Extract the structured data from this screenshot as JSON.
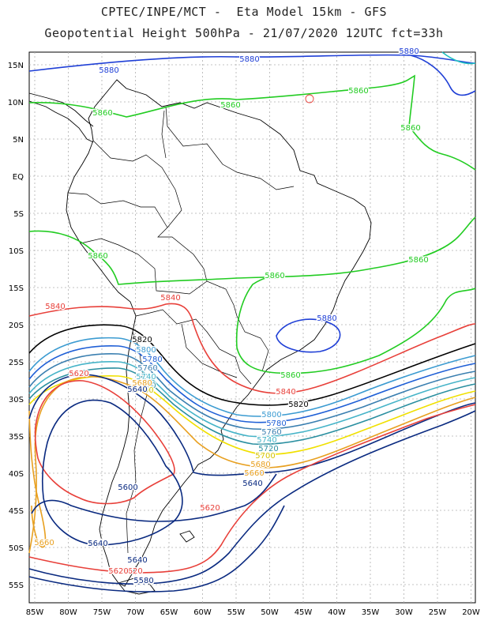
{
  "title_line1": "CPTEC/INPE/MCT -  Eta Model 15km - GFS",
  "title_line2": "Geopotential Height 500hPa - 21/07/2020 12UTC fct=33h",
  "axes": {
    "lon_ticks": [
      "85W",
      "80W",
      "75W",
      "70W",
      "65W",
      "60W",
      "55W",
      "50W",
      "45W",
      "40W",
      "35W",
      "30W",
      "25W",
      "20W"
    ],
    "lat_ticks": [
      "15N",
      "10N",
      "5N",
      "EQ",
      "5S",
      "10S",
      "15S",
      "20S",
      "25S",
      "30S",
      "35S",
      "40S",
      "45S",
      "50S",
      "55S"
    ]
  },
  "colors": {
    "5880": "#1f3fd6",
    "5860": "#22cc22",
    "5840": "#e8403a",
    "5820": "#000000",
    "5800": "#3b9bd1",
    "5780": "#1f5fd6",
    "5760": "#3a7fb0",
    "5740": "#46b4c8",
    "5720": "#2a8fa0",
    "5700": "#f0e000",
    "5680": "#e8a020",
    "5660": "#e8a020",
    "5640": "#0a2a80",
    "5620": "#e8403a",
    "5600": "#0a2a80",
    "5580": "#0a2a80",
    "5900": "#20c0c0"
  },
  "contour_labels": [
    {
      "text": "5880",
      "color": "#1f3fd6"
    },
    {
      "text": "5880",
      "color": "#1f3fd6"
    },
    {
      "text": "5880",
      "color": "#1f3fd6"
    },
    {
      "text": "5860",
      "color": "#22cc22"
    },
    {
      "text": "5860",
      "color": "#22cc22"
    },
    {
      "text": "5860",
      "color": "#22cc22"
    },
    {
      "text": "5860",
      "color": "#22cc22"
    },
    {
      "text": "5860",
      "color": "#22cc22"
    },
    {
      "text": "5860",
      "color": "#22cc22"
    },
    {
      "text": "5860",
      "color": "#22cc22"
    },
    {
      "text": "5860",
      "color": "#22cc22"
    },
    {
      "text": "5880",
      "color": "#1f3fd6"
    },
    {
      "text": "5840",
      "color": "#e8403a"
    },
    {
      "text": "5840",
      "color": "#e8403a"
    },
    {
      "text": "5840",
      "color": "#e8403a"
    },
    {
      "text": "5820",
      "color": "#000000"
    },
    {
      "text": "5820",
      "color": "#000000"
    },
    {
      "text": "5800",
      "color": "#3b9bd1"
    },
    {
      "text": "5780",
      "color": "#1f5fd6"
    },
    {
      "text": "5760",
      "color": "#3a7fb0"
    },
    {
      "text": "5740",
      "color": "#46b4c8"
    },
    {
      "text": "5720",
      "color": "#2a8fa0"
    },
    {
      "text": "5700",
      "color": "#d4c400"
    },
    {
      "text": "5680",
      "color": "#e8a020"
    },
    {
      "text": "5640",
      "color": "#0a2a80"
    },
    {
      "text": "5620",
      "color": "#e8403a"
    },
    {
      "text": "5620",
      "color": "#e8403a"
    },
    {
      "text": "5620",
      "color": "#e8403a"
    },
    {
      "text": "5800",
      "color": "#3b9bd1"
    },
    {
      "text": "5780",
      "color": "#1f5fd6"
    },
    {
      "text": "5760",
      "color": "#3a7fb0"
    },
    {
      "text": "5740",
      "color": "#46b4c8"
    },
    {
      "text": "5720",
      "color": "#2a8fa0"
    },
    {
      "text": "5700",
      "color": "#d4c400"
    },
    {
      "text": "5680",
      "color": "#e8a020"
    },
    {
      "text": "5660",
      "color": "#e8a020"
    },
    {
      "text": "5640",
      "color": "#0a2a80"
    },
    {
      "text": "5600",
      "color": "#0a2a80"
    },
    {
      "text": "5660",
      "color": "#e8a020"
    },
    {
      "text": "5640",
      "color": "#0a2a80"
    },
    {
      "text": "5640",
      "color": "#0a2a80"
    },
    {
      "text": "5620",
      "color": "#e8403a"
    },
    {
      "text": "5600",
      "color": "#0a2a80"
    },
    {
      "text": "5580",
      "color": "#0a2a80"
    }
  ]
}
